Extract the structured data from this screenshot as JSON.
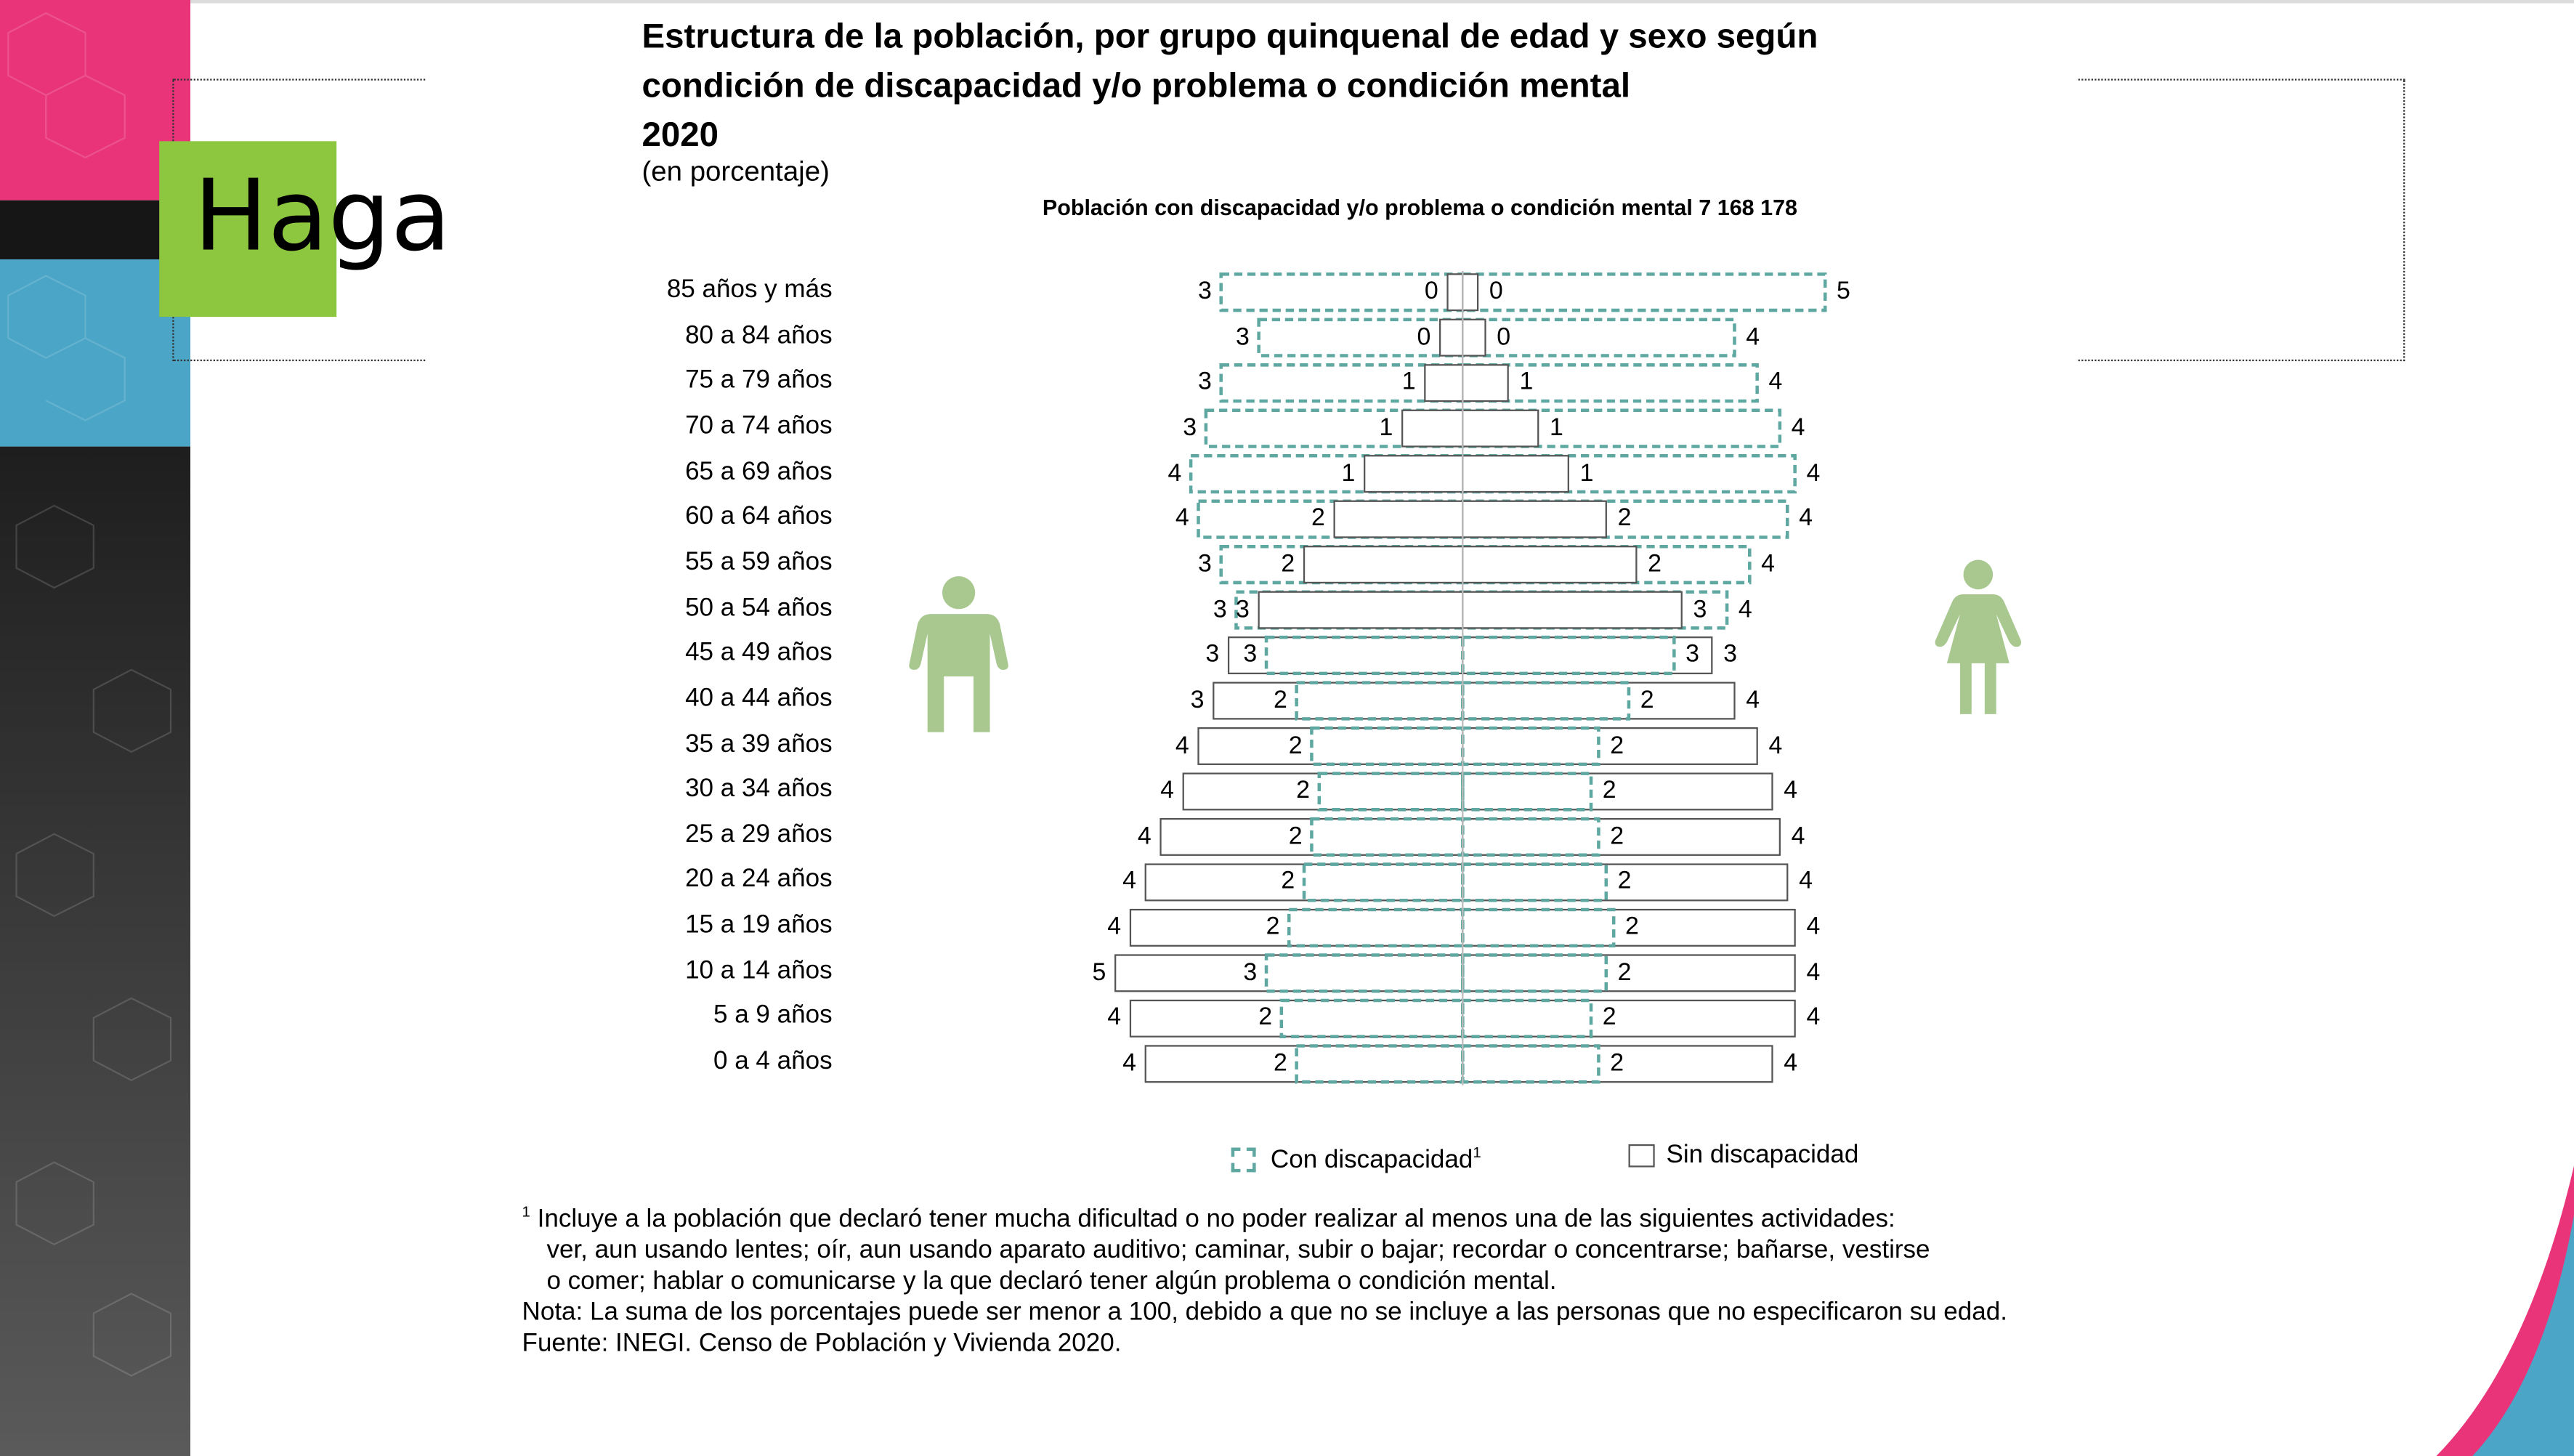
{
  "slide": {
    "heading_fragment": "Haga",
    "colors": {
      "pink": "#e9347a",
      "black": "#161616",
      "blue": "#4ba5c7",
      "dark": "#2c2c2c",
      "green": "#8dc63f",
      "teal": "#5fa8a2",
      "figure": "#a8c890"
    }
  },
  "chart_data": {
    "type": "bar",
    "subtype": "population-pyramid",
    "title_lines": [
      "Estructura de la población, por grupo quinquenal de edad y sexo según",
      "condición de discapacidad y/o problema o condición mental",
      "2020"
    ],
    "subtitle": "(en porcentaje)",
    "population_label": "Población con discapacidad y/o problema o condición mental  7 168 178",
    "units": "%",
    "left_side": "Hombres",
    "right_side": "Mujeres",
    "categories": [
      "85 años y más",
      "80 a 84 años",
      "75 a 79 años",
      "70 a 74 años",
      "65 a 69 años",
      "60 a 64 años",
      "55 a 59 años",
      "50 a 54 años",
      "45 a 49 años",
      "40 a 44 años",
      "35 a 39 años",
      "30 a 34 años",
      "25 a 29 años",
      "20 a 24 años",
      "15 a 19 años",
      "10 a 14 años",
      "5 a 9 años",
      "0 a 4 años"
    ],
    "series": [
      {
        "name": "Con discapacidad - hombres",
        "values": [
          3.2,
          2.7,
          3.2,
          3.4,
          3.6,
          3.5,
          3.2,
          3.0,
          2.6,
          2.2,
          2.0,
          1.9,
          2.0,
          2.1,
          2.3,
          2.6,
          2.4,
          2.2
        ],
        "labels": [
          "3",
          "3",
          "3",
          "3",
          "4",
          "4",
          "3",
          "3",
          "3",
          "2",
          "2",
          "2",
          "2",
          "2",
          "2",
          "3",
          "2",
          "2"
        ]
      },
      {
        "name": "Sin discapacidad - hombres",
        "values": [
          0.2,
          0.3,
          0.5,
          0.8,
          1.3,
          1.7,
          2.1,
          2.7,
          3.1,
          3.3,
          3.5,
          3.7,
          4.0,
          4.2,
          4.4,
          4.6,
          4.4,
          4.2
        ],
        "labels": [
          "0",
          "0",
          "1",
          "1",
          "1",
          "2",
          "2",
          "3",
          "3",
          "3",
          "4",
          "4",
          "4",
          "4",
          "4",
          "5",
          "4",
          "4"
        ]
      },
      {
        "name": "Sin discapacidad - mujeres",
        "values": [
          0.2,
          0.3,
          0.6,
          1.0,
          1.4,
          1.9,
          2.3,
          2.9,
          3.3,
          3.6,
          3.9,
          4.1,
          4.2,
          4.3,
          4.4,
          4.4,
          4.4,
          4.1
        ],
        "labels": [
          "0",
          "0",
          "1",
          "1",
          "1",
          "2",
          "2",
          "3",
          "3",
          "4",
          "4",
          "4",
          "4",
          "4",
          "4",
          "4",
          "4",
          "4"
        ]
      },
      {
        "name": "Con discapacidad - mujeres",
        "values": [
          4.8,
          3.6,
          3.9,
          4.2,
          4.4,
          4.3,
          3.8,
          3.5,
          2.8,
          2.2,
          1.8,
          1.7,
          1.8,
          1.9,
          2.0,
          1.9,
          1.7,
          1.8
        ],
        "labels": [
          "5",
          "4",
          "4",
          "4",
          "4",
          "4",
          "4",
          "4",
          "3",
          "2",
          "2",
          "2",
          "2",
          "2",
          "2",
          "2",
          "2",
          "2"
        ]
      }
    ],
    "legend": {
      "con": "Con discapacidad",
      "con_sup": "1",
      "sin": "Sin discapacidad",
      "placement": "bottom"
    },
    "grid": false
  },
  "notes": {
    "sup": "1",
    "note1_line1": "Incluye a la población que declaró tener mucha dificultad o no poder realizar al menos una de las siguientes actividades:",
    "note1_line2": "ver, aun usando lentes; oír, aun usando aparato auditivo; caminar, subir o bajar; recordar o concentrarse; bañarse, vestirse",
    "note1_line3": "o comer; hablar o comunicarse y la que declaró tener algún problema o condición mental.",
    "nota": "Nota: La suma de los porcentajes puede ser menor a 100, debido a que no se incluye a las personas que no especificaron su edad.",
    "fuente": "Fuente: INEGI. Censo de Población y Vivienda 2020."
  }
}
